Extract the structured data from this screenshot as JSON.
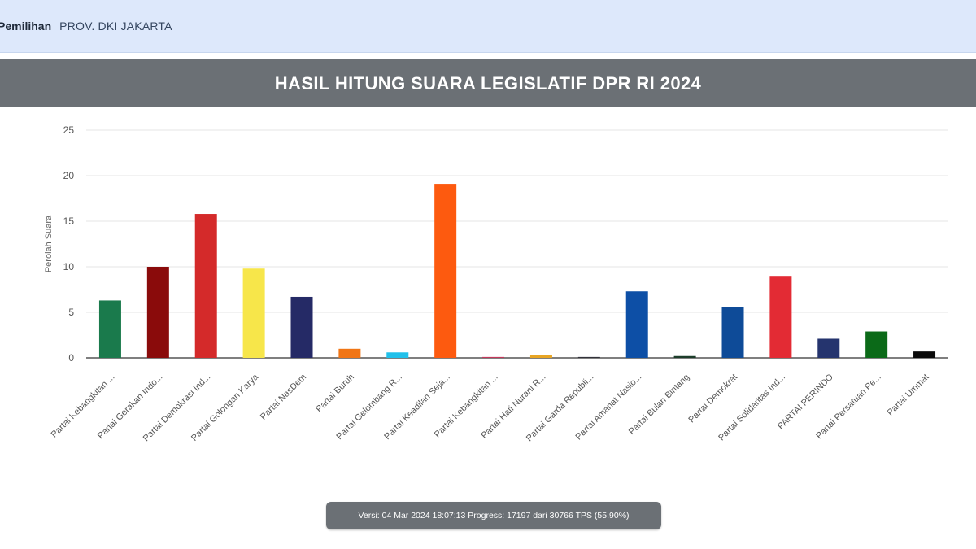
{
  "breadcrumb": {
    "active": "Pemilihan",
    "region": "PROV. DKI JAKARTA"
  },
  "header": {
    "title": "HASIL HITUNG SUARA LEGISLATIF DPR RI 2024"
  },
  "status": {
    "text": "Versi: 04 Mar 2024 18:07:13 Progress: 17197 dari 30766 TPS (55.90%)"
  },
  "chart_data": {
    "type": "bar",
    "ylabel": "Perolah Suara",
    "xlabel": "",
    "ylim": [
      0,
      25
    ],
    "yticks": [
      0,
      5,
      10,
      15,
      20,
      25
    ],
    "grid": true,
    "categories": [
      "Partai Kebangkitan ...",
      "Partai Gerakan Indo...",
      "Partai Demokrasi Ind...",
      "Partai Golongan Karya",
      "Partai NasDem",
      "Partai Buruh",
      "Partai Gelombang R...",
      "Partai Keadilan Seja...",
      "Partai Kebangkitan ...",
      "Partai Hati Nurani R...",
      "Partai Garda Republi...",
      "Partai Amanat Nasio...",
      "Partai Bulan Bintang",
      "Partai Demokrat",
      "Partai Solidaritas Ind...",
      "PARTAI PERINDO",
      "Partai Persatuan Pe...",
      "Partai Ummat"
    ],
    "values": [
      6.3,
      10.0,
      15.8,
      9.8,
      6.7,
      1.0,
      0.6,
      19.1,
      0.1,
      0.3,
      0.1,
      7.3,
      0.2,
      5.6,
      9.0,
      2.1,
      2.9,
      0.7
    ],
    "colors": [
      "#1a7a4c",
      "#8a0b0b",
      "#d42a2a",
      "#f7e64a",
      "#252a66",
      "#f07515",
      "#21c0ea",
      "#fd5a0f",
      "#c2395b",
      "#e8a524",
      "#32323a",
      "#0d4fa6",
      "#1c3d2a",
      "#0e4b98",
      "#e32b34",
      "#25346e",
      "#0b6a18",
      "#0a0a0a"
    ]
  }
}
